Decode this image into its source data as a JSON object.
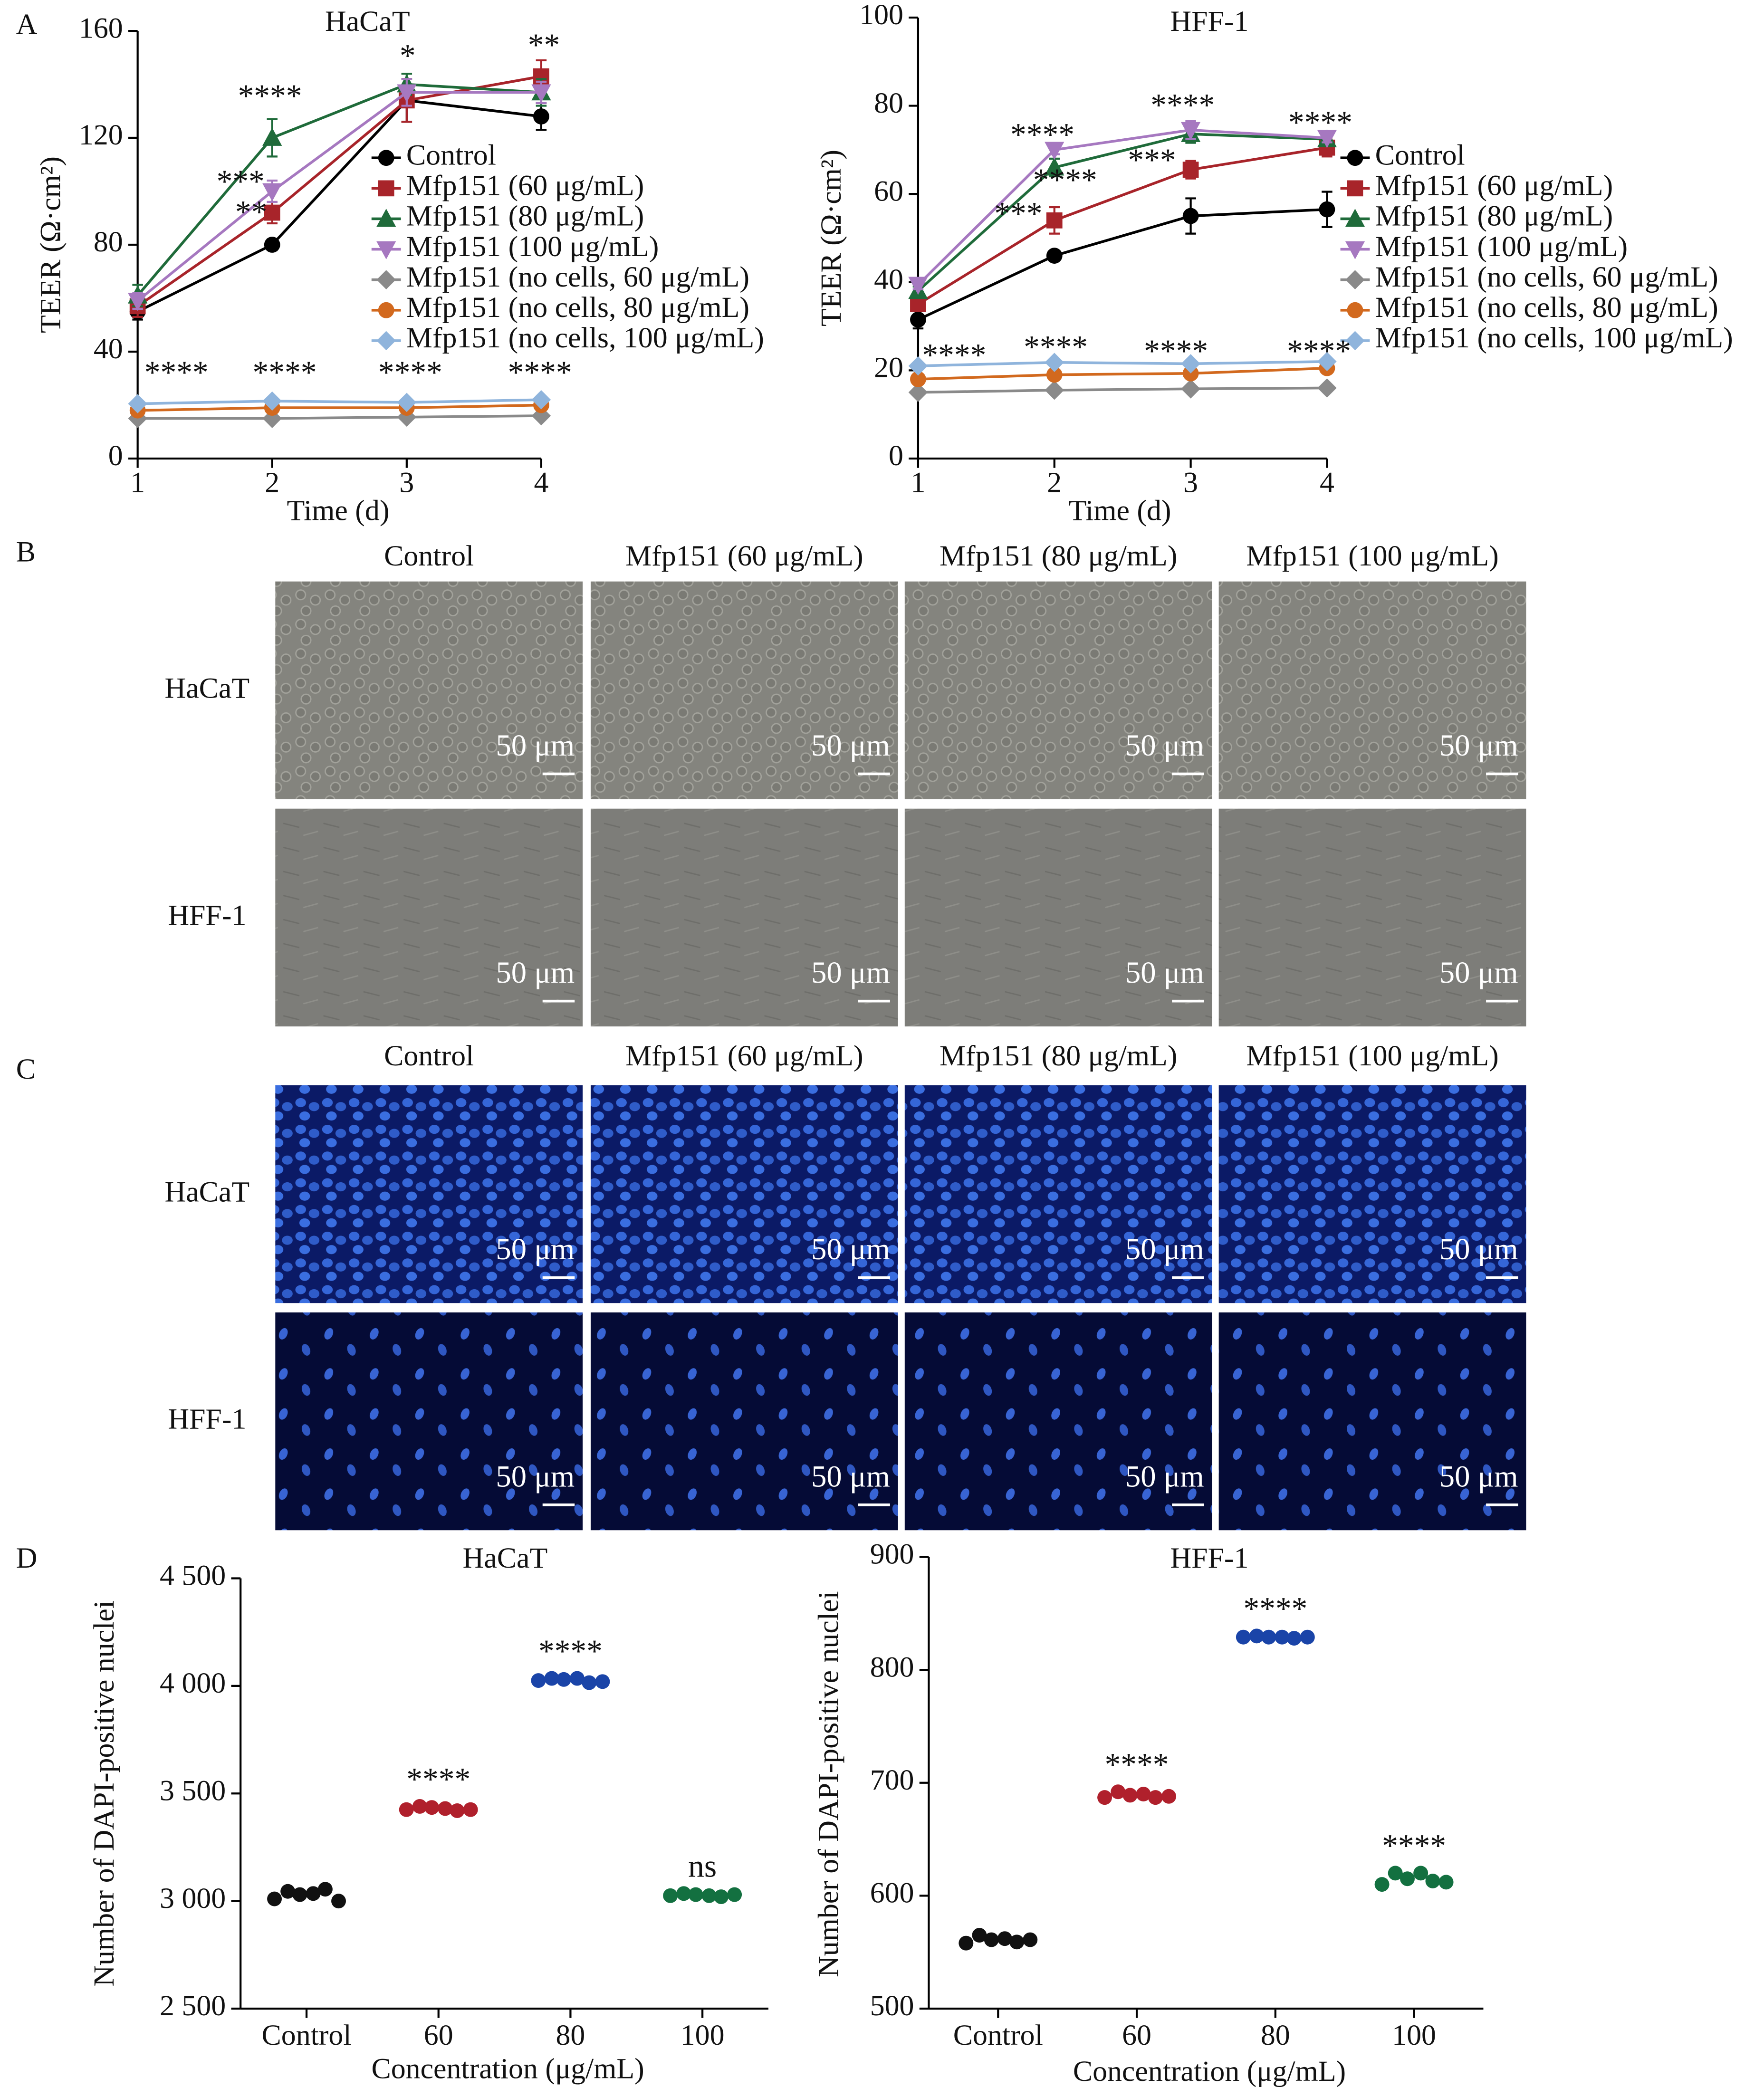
{
  "chart_data": [
    {
      "type": "line",
      "title": "HaCaT",
      "x_label": "Time (d)",
      "y_label": "TEER (Ω·cm²)",
      "x": [
        1,
        2,
        3,
        4
      ],
      "xlim": [
        1,
        4
      ],
      "xticks": [
        1,
        2,
        3,
        4
      ],
      "ylim": [
        0,
        160
      ],
      "yticks": [
        0,
        40,
        80,
        120,
        160
      ],
      "series": [
        {
          "name": "Control",
          "color": "#000000",
          "marker": "circle",
          "values": [
            55,
            80,
            134,
            128
          ],
          "errors": [
            3,
            2,
            8,
            5
          ]
        },
        {
          "name": "Mfp151 (60 μg/mL)",
          "color": "#a8242a",
          "marker": "square",
          "values": [
            57,
            92,
            134,
            143
          ],
          "errors": [
            4,
            4,
            8,
            6
          ]
        },
        {
          "name": "Mfp151 (80 μg/mL)",
          "color": "#1f6b3a",
          "marker": "triangle-up",
          "values": [
            61,
            120,
            140,
            137
          ],
          "errors": [
            4,
            7,
            4,
            5
          ]
        },
        {
          "name": "Mfp151 (100 μg/mL)",
          "color": "#a678c0",
          "marker": "triangle-down",
          "values": [
            59,
            100,
            137,
            137
          ],
          "errors": [
            3,
            4,
            5,
            4
          ]
        },
        {
          "name": "Mfp151 (no cells, 60 μg/mL)",
          "color": "#8a8a8a",
          "marker": "diamond",
          "values": [
            15,
            15,
            15.5,
            16
          ]
        },
        {
          "name": "Mfp151 (no cells, 80 μg/mL)",
          "color": "#d2691e",
          "marker": "circle",
          "values": [
            18,
            19,
            19,
            20
          ]
        },
        {
          "name": "Mfp151 (no cells, 100 μg/mL)",
          "color": "#8fb4dc",
          "marker": "diamond",
          "values": [
            20.5,
            21.5,
            21,
            22
          ]
        }
      ],
      "annotations": [
        "****",
        "***",
        "**",
        "*",
        "**",
        "****",
        "****",
        "****",
        "****"
      ]
    },
    {
      "type": "line",
      "title": "HFF-1",
      "x_label": "Time (d)",
      "y_label": "TEER (Ω·cm²)",
      "x": [
        1,
        2,
        3,
        4
      ],
      "xlim": [
        1,
        4
      ],
      "xticks": [
        1,
        2,
        3,
        4
      ],
      "ylim": [
        0,
        100
      ],
      "yticks": [
        0,
        20,
        40,
        60,
        80,
        100
      ],
      "series": [
        {
          "name": "Control",
          "color": "#000000",
          "marker": "circle",
          "values": [
            31.5,
            46,
            55,
            56.5
          ],
          "errors": [
            2,
            1,
            4,
            4
          ]
        },
        {
          "name": "Mfp151 (60 μg/mL)",
          "color": "#a8242a",
          "marker": "square",
          "values": [
            35,
            54,
            65.5,
            70.5
          ],
          "errors": [
            1,
            3,
            2,
            2
          ]
        },
        {
          "name": "Mfp151 (80 μg/mL)",
          "color": "#1f6b3a",
          "marker": "triangle-up",
          "values": [
            38,
            66,
            73.6,
            72.4
          ],
          "errors": [
            1,
            2,
            2,
            1
          ]
        },
        {
          "name": "Mfp151 (100 μg/mL)",
          "color": "#a678c0",
          "marker": "triangle-down",
          "values": [
            39.4,
            70,
            74.5,
            72.7
          ],
          "errors": [
            1,
            1,
            2,
            1
          ]
        },
        {
          "name": "Mfp151 (no cells, 60 μg/mL)",
          "color": "#8a8a8a",
          "marker": "diamond",
          "values": [
            15,
            15.5,
            15.8,
            16
          ]
        },
        {
          "name": "Mfp151 (no cells, 80 μg/mL)",
          "color": "#d2691e",
          "marker": "circle",
          "values": [
            18,
            19,
            19.3,
            20.5
          ]
        },
        {
          "name": "Mfp151 (no cells, 100 μg/mL)",
          "color": "#8fb4dc",
          "marker": "diamond",
          "values": [
            21,
            21.8,
            21.5,
            22
          ]
        }
      ],
      "annotations": [
        "****",
        "****",
        "***",
        "****",
        "***",
        "****",
        "****",
        "****",
        "****",
        "****"
      ]
    },
    {
      "type": "dot",
      "title": "HaCaT",
      "x_label": "Concentration (μg/mL)",
      "y_label": "Number of DAPI-positive nuclei",
      "categories": [
        "Control",
        "60",
        "80",
        "100"
      ],
      "ylim": [
        2500,
        4500
      ],
      "yticks": [
        {
          "value": 2500,
          "label": "2 500"
        },
        {
          "value": 3000,
          "label": "3 000"
        },
        {
          "value": 3500,
          "label": "3 500"
        },
        {
          "value": 4000,
          "label": "4 000"
        },
        {
          "value": 4500,
          "label": "4 500"
        }
      ],
      "series": [
        {
          "color": "#111111",
          "values": [
            [
              3010,
              3045,
              3030,
              3035,
              3055,
              3000
            ],
            [
              3425,
              3440,
              3435,
              3430,
              3420,
              3425
            ],
            [
              4025,
              4035,
              4030,
              4035,
              4015,
              4020
            ],
            [
              3025,
              3035,
              3030,
              3025,
              3020,
              3030
            ]
          ]
        }
      ],
      "group_colors": [
        "#111111",
        "#b0202c",
        "#1a44a8",
        "#137040"
      ],
      "annotations": [
        "****",
        "****",
        "ns"
      ]
    },
    {
      "type": "dot",
      "title": "HFF-1",
      "x_label": "Concentration (μg/mL)",
      "y_label": "Number of DAPI-positive nuclei",
      "categories": [
        "Control",
        "60",
        "80",
        "100"
      ],
      "ylim": [
        500,
        900
      ],
      "yticks": [
        500,
        600,
        700,
        800,
        900
      ],
      "series": [
        {
          "color": "#111111",
          "values": [
            [
              558,
              565,
              561,
              562,
              559,
              561
            ],
            [
              687,
              692,
              689,
              690,
              687,
              688
            ],
            [
              829,
              830,
              829,
              829,
              828,
              829
            ],
            [
              610,
              620,
              615,
              620,
              613,
              612
            ]
          ]
        }
      ],
      "group_colors": [
        "#111111",
        "#b0202c",
        "#1a44a8",
        "#137040"
      ],
      "annotations": [
        "****",
        "****",
        "****"
      ]
    }
  ],
  "figure": {
    "panel_labels": [
      "A",
      "B",
      "C",
      "D"
    ],
    "micrographs": [
      {
        "columns": [
          "Control",
          "Mfp151 (60 μg/mL)",
          "Mfp151 (80 μg/mL)",
          "Mfp151 (100 μg/mL)"
        ],
        "rows": [
          "HaCaT",
          "HFF-1"
        ],
        "scale_bar": "50 μm"
      },
      {
        "columns": [
          "Control",
          "Mfp151 (60 μg/mL)",
          "Mfp151 (80 μg/mL)",
          "Mfp151 (100 μg/mL)"
        ],
        "rows": [
          "HaCaT",
          "HFF-1"
        ],
        "scale_bar": "50 μm"
      }
    ]
  }
}
